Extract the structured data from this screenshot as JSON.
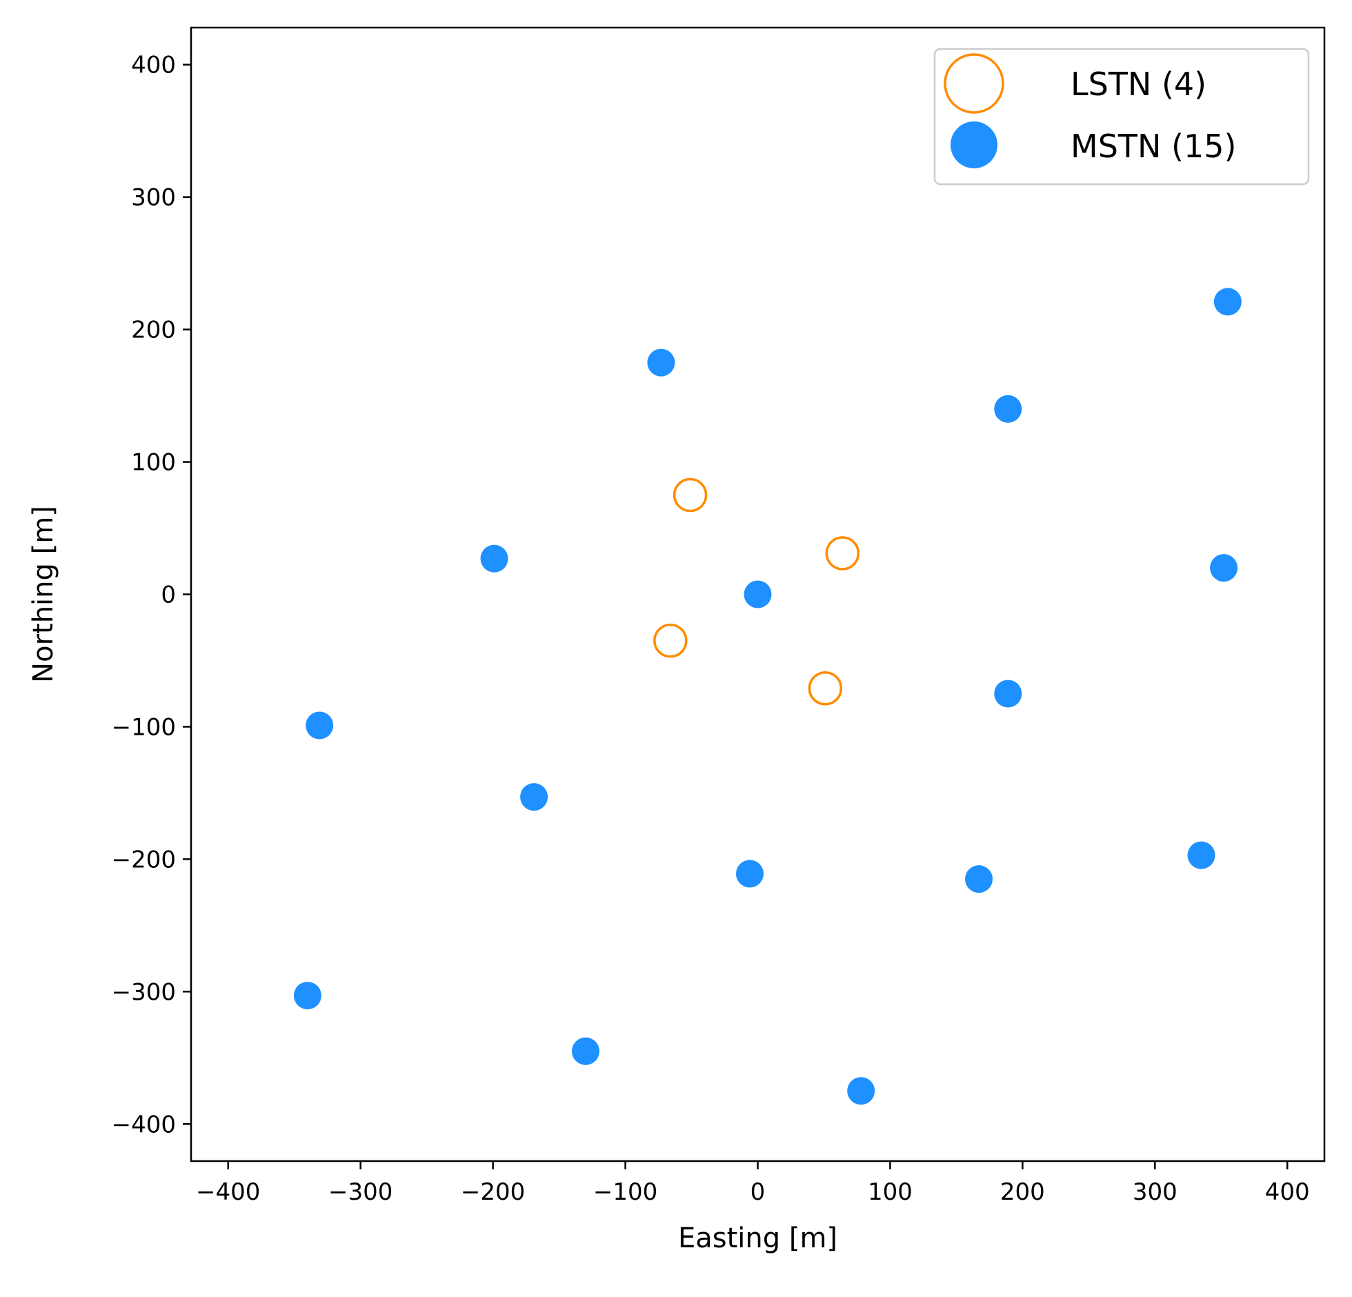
{
  "chart_data": {
    "type": "scatter",
    "title": "",
    "xlabel": "Easting [m]",
    "ylabel": "Northing [m]",
    "xlim": [
      -428,
      428
    ],
    "ylim": [
      -428,
      428
    ],
    "x_ticks": [
      -400,
      -300,
      -200,
      -100,
      0,
      100,
      200,
      300,
      400
    ],
    "y_ticks": [
      -400,
      -300,
      -200,
      -100,
      0,
      100,
      200,
      300,
      400
    ],
    "x_tick_labels": [
      "−400",
      "−300",
      "−200",
      "−100",
      "0",
      "100",
      "200",
      "300",
      "400"
    ],
    "y_tick_labels": [
      "−400",
      "−300",
      "−200",
      "−100",
      "0",
      "100",
      "200",
      "300",
      "400"
    ],
    "grid": false,
    "legend_position": "top-right",
    "series": [
      {
        "name": "LSTN (4)",
        "marker": "open-circle",
        "color": "#ff8c00",
        "x": [
          -51,
          64,
          -66,
          51
        ],
        "y": [
          75,
          31,
          -35,
          -71
        ]
      },
      {
        "name": "MSTN (15)",
        "marker": "filled-circle",
        "color": "#1e90ff",
        "x": [
          0,
          -73,
          189,
          355,
          -199,
          352,
          189,
          -331,
          -169,
          -6,
          167,
          335,
          -340,
          -130,
          78
        ],
        "y": [
          0,
          175,
          140,
          221,
          27,
          20,
          -75,
          -99,
          -153,
          -211,
          -215,
          -197,
          -303,
          -345,
          -375
        ]
      }
    ]
  }
}
